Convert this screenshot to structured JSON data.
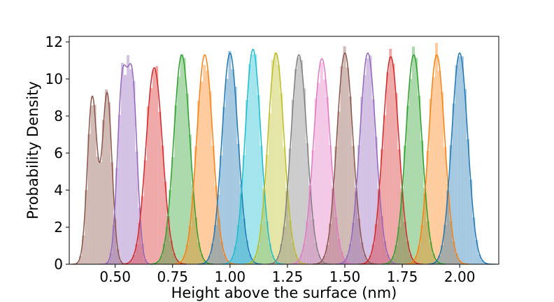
{
  "chart_data": {
    "type": "histogram-kde",
    "title": "",
    "xlabel": "Height above the surface (nm)",
    "ylabel": "Probability Density",
    "xlim": [
      0.3,
      2.17
    ],
    "ylim": [
      0,
      12.3
    ],
    "xticks": [
      0.5,
      0.75,
      1.0,
      1.25,
      1.5,
      1.75,
      2.0
    ],
    "xtick_labels": [
      "0.50",
      "0.75",
      "1.00",
      "1.25",
      "1.50",
      "1.75",
      "2.00"
    ],
    "yticks": [
      0,
      2,
      4,
      6,
      8,
      10,
      12
    ],
    "ytick_labels": [
      "0",
      "2",
      "4",
      "6",
      "8",
      "10",
      "12"
    ],
    "grid": false,
    "legend": false,
    "series": [
      {
        "color": "#8c564b",
        "type": "bimodal",
        "peaks": [
          {
            "center": 0.4,
            "sigma": 0.021,
            "height": 9.0
          },
          {
            "center": 0.465,
            "sigma": 0.021,
            "height": 9.2
          }
        ],
        "bin_width": 0.0125,
        "range": [
          0.33,
          0.53
        ]
      },
      {
        "color": "#9467bd",
        "type": "bimodal",
        "peaks": [
          {
            "center": 0.53,
            "sigma": 0.021,
            "height": 9.4
          },
          {
            "center": 0.575,
            "sigma": 0.021,
            "height": 9.5
          }
        ],
        "bin_width": 0.0125,
        "range": [
          0.45,
          0.65
        ]
      },
      {
        "color": "#d62728",
        "center": 0.67,
        "sigma": 0.036,
        "height": 10.6,
        "bin_width": 0.0125,
        "range": [
          0.55,
          0.79
        ]
      },
      {
        "color": "#2ca02c",
        "center": 0.79,
        "sigma": 0.035,
        "height": 11.3,
        "bin_width": 0.0125,
        "range": [
          0.67,
          0.91
        ]
      },
      {
        "color": "#ff7f0e",
        "center": 0.89,
        "sigma": 0.035,
        "height": 11.3,
        "bin_width": 0.0125,
        "range": [
          0.77,
          1.01
        ]
      },
      {
        "color": "#1f77b4",
        "center": 1.0,
        "sigma": 0.035,
        "height": 11.4,
        "bin_width": 0.0125,
        "range": [
          0.88,
          1.12
        ]
      },
      {
        "color": "#17becf",
        "center": 1.1,
        "sigma": 0.034,
        "height": 11.6,
        "bin_width": 0.0125,
        "range": [
          0.98,
          1.22
        ]
      },
      {
        "color": "#bcbd22",
        "center": 1.2,
        "sigma": 0.035,
        "height": 11.4,
        "bin_width": 0.0125,
        "range": [
          1.08,
          1.32
        ]
      },
      {
        "color": "#7f7f7f",
        "center": 1.3,
        "sigma": 0.035,
        "height": 11.3,
        "bin_width": 0.0125,
        "range": [
          1.18,
          1.42
        ]
      },
      {
        "color": "#e377c2",
        "center": 1.4,
        "sigma": 0.036,
        "height": 11.1,
        "bin_width": 0.0125,
        "range": [
          1.28,
          1.52
        ]
      },
      {
        "color": "#8c564b",
        "center": 1.5,
        "sigma": 0.035,
        "height": 11.4,
        "bin_width": 0.0125,
        "range": [
          1.38,
          1.62
        ]
      },
      {
        "color": "#9467bd",
        "center": 1.6,
        "sigma": 0.035,
        "height": 11.4,
        "bin_width": 0.0125,
        "range": [
          1.48,
          1.72
        ]
      },
      {
        "color": "#d62728",
        "center": 1.7,
        "sigma": 0.035,
        "height": 11.2,
        "bin_width": 0.0125,
        "range": [
          1.58,
          1.82
        ]
      },
      {
        "color": "#2ca02c",
        "center": 1.8,
        "sigma": 0.035,
        "height": 11.3,
        "bin_width": 0.0125,
        "range": [
          1.68,
          1.92
        ]
      },
      {
        "color": "#ff7f0e",
        "center": 1.9,
        "sigma": 0.035,
        "height": 11.3,
        "bin_width": 0.0125,
        "range": [
          1.78,
          2.02
        ]
      },
      {
        "color": "#1f77b4",
        "center": 2.0,
        "sigma": 0.035,
        "height": 11.4,
        "bin_width": 0.0125,
        "range": [
          1.88,
          2.14
        ]
      }
    ]
  }
}
